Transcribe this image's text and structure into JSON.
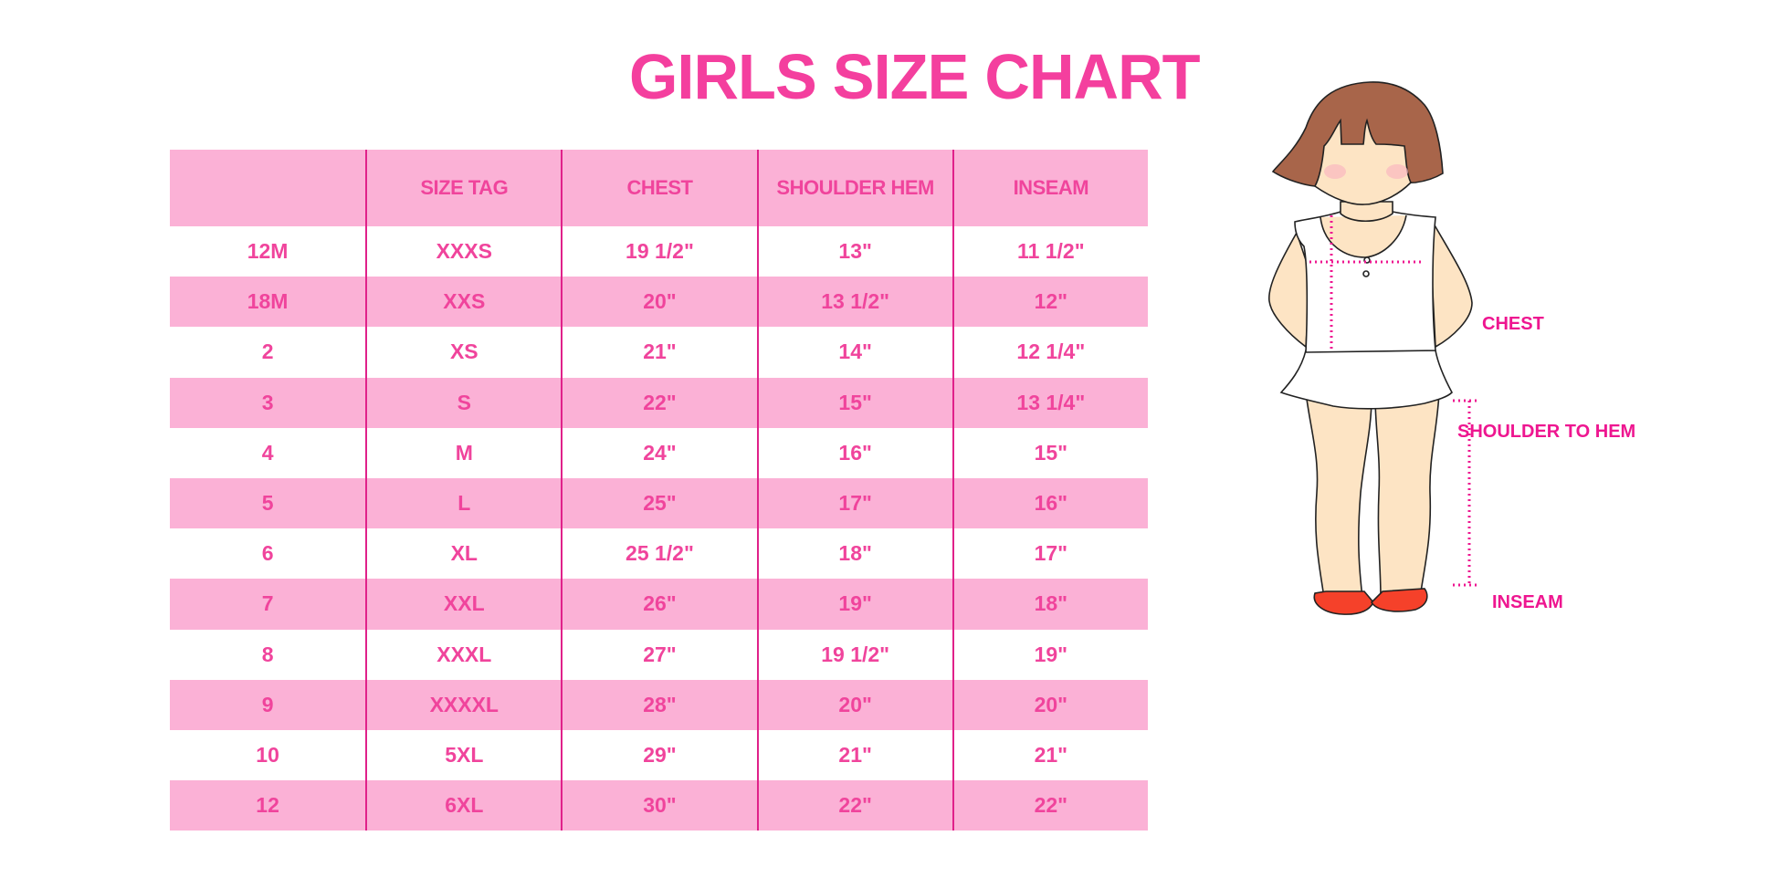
{
  "title": "GIRLS SIZE CHART",
  "table": {
    "headers": [
      "",
      "SIZE TAG",
      "CHEST",
      "SHOULDER HEM",
      "INSEAM"
    ],
    "rows": [
      [
        "12M",
        "XXXS",
        "19 1/2\"",
        "13\"",
        "11 1/2\""
      ],
      [
        "18M",
        "XXS",
        "20\"",
        "13 1/2\"",
        "12\""
      ],
      [
        "2",
        "XS",
        "21\"",
        "14\"",
        "12 1/4\""
      ],
      [
        "3",
        "S",
        "22\"",
        "15\"",
        "13 1/4\""
      ],
      [
        "4",
        "M",
        "24\"",
        "16\"",
        "15\""
      ],
      [
        "5",
        "L",
        "25\"",
        "17\"",
        "16\""
      ],
      [
        "6",
        "XL",
        "25 1/2\"",
        "18\"",
        "17\""
      ],
      [
        "7",
        "XXL",
        "26\"",
        "19\"",
        "18\""
      ],
      [
        "8",
        "XXXL",
        "27\"",
        "19 1/2\"",
        "19\""
      ],
      [
        "9",
        "XXXXL",
        "28\"",
        "20\"",
        "20\""
      ],
      [
        "10",
        "5XL",
        "29\"",
        "21\"",
        "21\""
      ],
      [
        "12",
        "6XL",
        "30\"",
        "22\"",
        "22\""
      ]
    ]
  },
  "figure": {
    "labels": {
      "chest": "CHEST",
      "shoulder": "SHOULDER TO HEM",
      "inseam": "INSEAM"
    }
  },
  "colors": {
    "accent": "#f43f9e",
    "band": "#fbb1d6",
    "divider": "#e0218a",
    "measure": "#ee1690"
  }
}
